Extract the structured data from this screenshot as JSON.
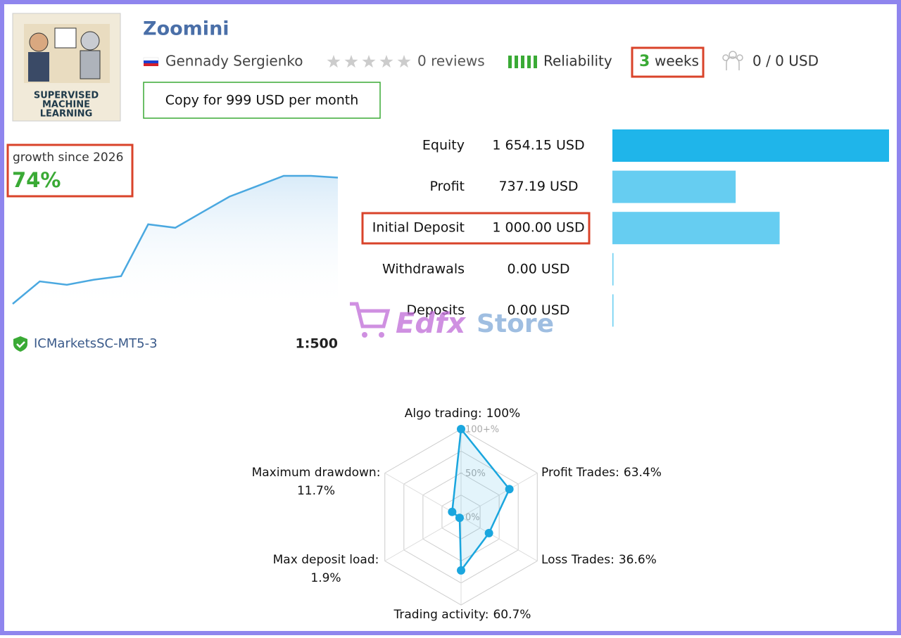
{
  "header": {
    "title": "Zoomini",
    "author": "Gennady Sergienko",
    "reviews": "0 reviews",
    "reliability": "Reliability",
    "weeks_number": "3",
    "weeks_unit": "weeks",
    "subscribers": "0 / 0 USD",
    "copy_button": "Copy for 999 USD per month"
  },
  "logo": {
    "lines": [
      "SUPERVISED",
      "MACHINE",
      "LEARNING"
    ]
  },
  "growth": {
    "label": "growth since 2026",
    "value": "74%",
    "chart_data": {
      "type": "line",
      "color": "#4aa8e0",
      "values": [
        0,
        13,
        11,
        14,
        16,
        46,
        44,
        53,
        62,
        68,
        74,
        74,
        73
      ]
    }
  },
  "stats": {
    "chart_data": {
      "type": "bar",
      "categories": [
        "Equity",
        "Profit",
        "Initial Deposit",
        "Withdrawals",
        "Deposits"
      ],
      "values": [
        1654.15,
        737.19,
        1000,
        0,
        0
      ],
      "value_labels": [
        "1 654.15 USD",
        "737.19 USD",
        "1 000.00 USD",
        "0.00 USD",
        "0.00 USD"
      ],
      "colors": [
        "#1fb5ea",
        "#66cdf1",
        "#66cdf1",
        "#66cdf1",
        "#66cdf1"
      ]
    }
  },
  "account": {
    "server": "ICMarketsSC-MT5-3",
    "leverage": "1:500"
  },
  "watermark": [
    "Edfx",
    "Store"
  ],
  "radar": {
    "chart_data": {
      "type": "radar",
      "color": "#1aa6de",
      "categories": [
        "Algo trading:",
        "Profit Trades:",
        "Loss Trades:",
        "Trading activity:",
        "Max deposit load:",
        "Maximum drawdown:"
      ],
      "values": [
        100,
        63.4,
        36.6,
        60.7,
        1.9,
        11.7
      ],
      "value_labels": [
        "100%",
        "63.4%",
        "36.6%",
        "60.7%",
        "1.9%",
        "11.7%"
      ],
      "rlim": [
        0,
        100
      ],
      "rticks": [
        {
          "value": 0,
          "label": "0%"
        },
        {
          "value": 50,
          "label": "50%"
        },
        {
          "value": 100,
          "label": "100+%"
        }
      ]
    }
  }
}
